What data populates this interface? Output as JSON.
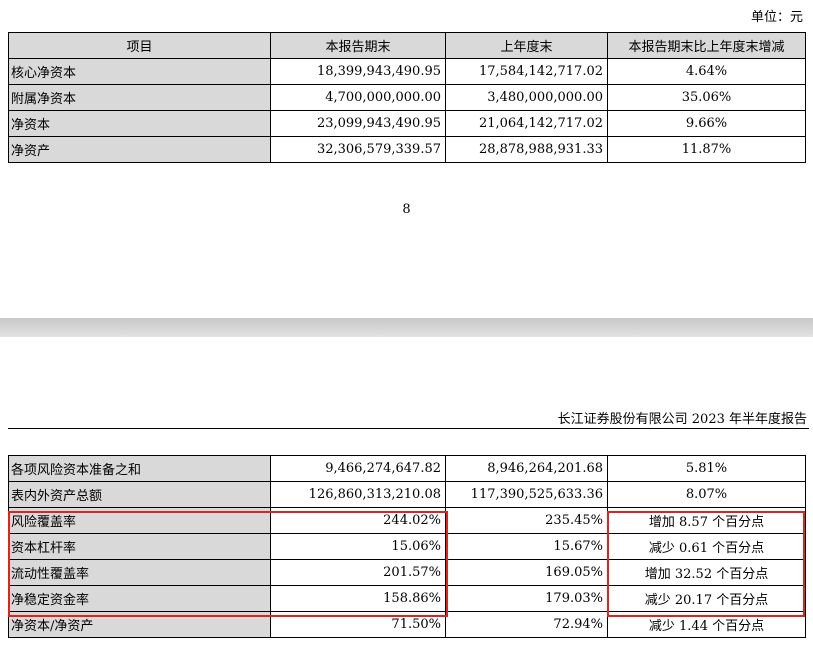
{
  "unit_label": "单位：元",
  "table1": {
    "headers": [
      "项目",
      "本报告期末",
      "上年度末",
      "本报告期末比上年度末增减"
    ],
    "rows": [
      [
        "核心净资本",
        "18,399,943,490.95",
        "17,584,142,717.02",
        "4.64%"
      ],
      [
        "附属净资本",
        "4,700,000,000.00",
        "3,480,000,000.00",
        "35.06%"
      ],
      [
        "净资本",
        "23,099,943,490.95",
        "21,064,142,717.02",
        "9.66%"
      ],
      [
        "净资产",
        "32,306,579,339.57",
        "28,878,988,931.33",
        "11.87%"
      ]
    ]
  },
  "page_number": "8",
  "running_header": "长江证券股份有限公司 2023 年半年度报告",
  "table2": {
    "rows": [
      [
        "各项风险资本准备之和",
        "9,466,274,647.82",
        "8,946,264,201.68",
        "5.81%"
      ],
      [
        "表内外资产总额",
        "126,860,313,210.08",
        "117,390,525,633.36",
        "8.07%"
      ],
      [
        "风险覆盖率",
        "244.02%",
        "235.45%",
        "增加 8.57 个百分点"
      ],
      [
        "资本杠杆率",
        "15.06%",
        "15.67%",
        "减少 0.61 个百分点"
      ],
      [
        "流动性覆盖率",
        "201.57%",
        "169.05%",
        "增加 32.52 个百分点"
      ],
      [
        "净稳定资金率",
        "158.86%",
        "179.03%",
        "减少 20.17 个百分点"
      ],
      [
        "净资本/净资产",
        "71.50%",
        "72.94%",
        "减少 1.44 个百分点"
      ]
    ]
  },
  "highlight_color": "#e0231c"
}
